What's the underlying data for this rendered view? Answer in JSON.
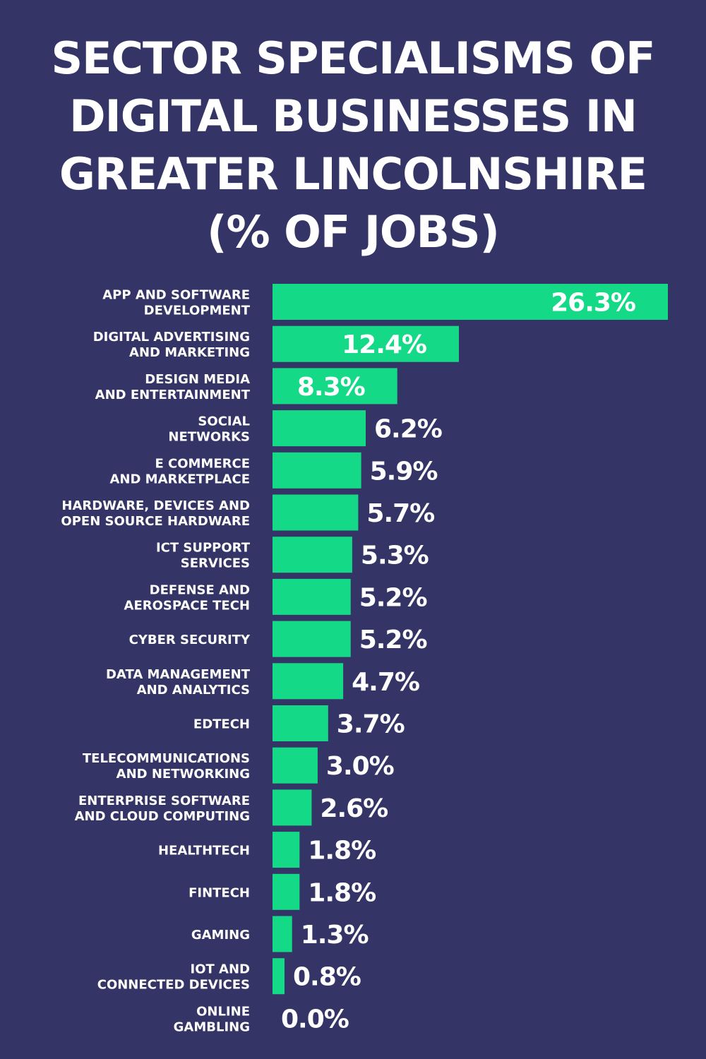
{
  "colors": {
    "background": "#343466",
    "bar": "#14d987",
    "text": "#ffffff"
  },
  "title_lines": [
    "SECTOR SPECIALISMS OF",
    "DIGITAL BUSINESSES IN",
    "GREATER LINCOLNSHIRE",
    "(% OF JOBS)"
  ],
  "chart_data": {
    "type": "bar",
    "orientation": "horizontal",
    "title": "SECTOR SPECIALISMS OF DIGITAL BUSINESSES IN GREATER LINCOLNSHIRE (% OF JOBS)",
    "categories": [
      [
        "APP AND SOFTWARE",
        "DEVELOPMENT"
      ],
      [
        "DIGITAL ADVERTISING",
        "AND MARKETING"
      ],
      [
        "DESIGN MEDIA",
        "AND ENTERTAINMENT"
      ],
      [
        "SOCIAL",
        "NETWORKS"
      ],
      [
        "E COMMERCE",
        "AND MARKETPLACE"
      ],
      [
        "HARDWARE, DEVICES AND",
        "OPEN SOURCE HARDWARE"
      ],
      [
        "ICT SUPPORT",
        "SERVICES"
      ],
      [
        "DEFENSE AND",
        "AEROSPACE TECH"
      ],
      [
        "CYBER SECURITY"
      ],
      [
        "DATA MANAGEMENT",
        "AND ANALYTICS"
      ],
      [
        "EDTECH"
      ],
      [
        "TELECOMMUNICATIONS",
        "AND NETWORKING"
      ],
      [
        "ENTERPRISE SOFTWARE",
        "AND CLOUD COMPUTING"
      ],
      [
        "HEALTHTECH"
      ],
      [
        "FINTECH"
      ],
      [
        "GAMING"
      ],
      [
        "IOT AND",
        "CONNECTED DEVICES"
      ],
      [
        "ONLINE",
        "GAMBLING"
      ]
    ],
    "values": [
      26.3,
      12.4,
      8.3,
      6.2,
      5.9,
      5.7,
      5.3,
      5.2,
      5.2,
      4.7,
      3.7,
      3.0,
      2.6,
      1.8,
      1.8,
      1.3,
      0.8,
      0.0
    ],
    "data_labels": [
      "26.3%",
      "12.4%",
      "8.3%",
      "6.2%",
      "5.9%",
      "5.7%",
      "5.3%",
      "5.2%",
      "5.2%",
      "4.7%",
      "3.7%",
      "3.0%",
      "2.6%",
      "1.8%",
      "1.8%",
      "1.3%",
      "0.8%",
      "0.0%"
    ],
    "xlim": [
      0,
      26.3
    ],
    "grid": false,
    "legend": "none"
  }
}
